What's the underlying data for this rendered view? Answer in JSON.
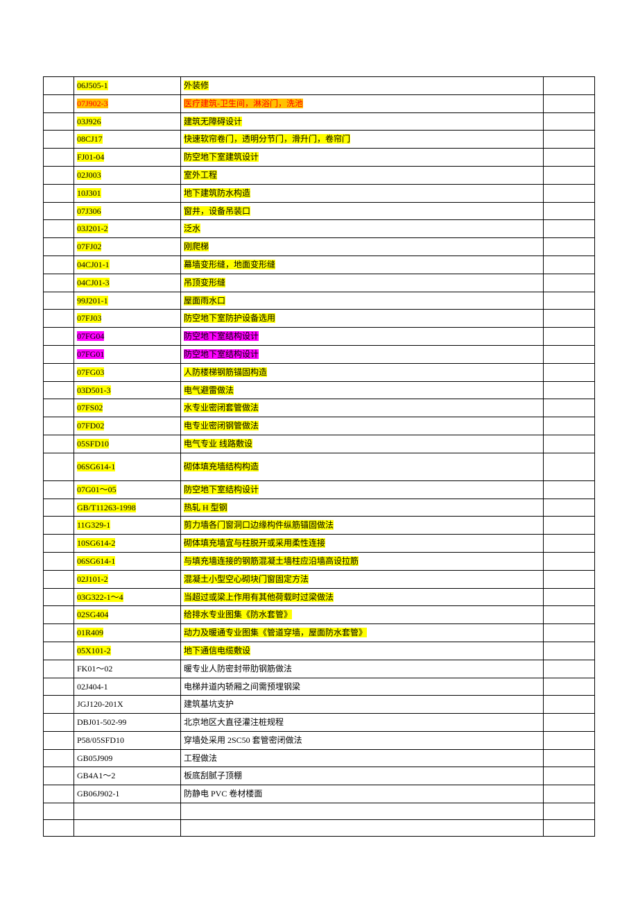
{
  "table": {
    "columns": {
      "col1_width": 44,
      "col2_width": 154,
      "col4_width": 74
    },
    "border_color": "#000000",
    "font_family": "SimSun",
    "font_size": 12,
    "highlight_colors": {
      "yellow": "#ffff00",
      "orange_bg": "#ffc000",
      "orange_text": "#ff0000",
      "magenta": "#ff00ff"
    },
    "rows": [
      {
        "c2": "06J505-1",
        "c3": "外装修",
        "hl": "yellow"
      },
      {
        "c2": "07J902-3",
        "c3": "医疗建筑-卫生间，淋浴门，洗池",
        "hl": "orange"
      },
      {
        "c2": "03J926",
        "c3": "建筑无障碍设计",
        "hl": "yellow"
      },
      {
        "c2": "08CJ17",
        "c3": "快速软帘卷门，透明分节门，滑升门，卷帘门",
        "hl": "yellow"
      },
      {
        "c2": "FJ01-04",
        "c3": "防空地下室建筑设计",
        "hl": "yellow"
      },
      {
        "c2": "02J003",
        "c3": "室外工程",
        "hl": "yellow"
      },
      {
        "c2": "10J301",
        "c3": "地下建筑防水构造",
        "hl": "yellow"
      },
      {
        "c2": "07J306",
        "c3": "窗井，设备吊装口",
        "hl": "yellow"
      },
      {
        "c2": "03J201-2",
        "c3": "泛水",
        "hl": "yellow"
      },
      {
        "c2": "07FJ02",
        "c3": "刚爬梯",
        "hl": "yellow"
      },
      {
        "c2": "04CJ01-1",
        "c3": "幕墙变形缝，地面变形缝",
        "hl": "yellow"
      },
      {
        "c2": "04CJ01-3",
        "c3": "吊顶变形缝",
        "hl": "yellow"
      },
      {
        "c2": "99J201-1",
        "c3": "屋面雨水口",
        "hl": "yellow"
      },
      {
        "c2": "07FJ03",
        "c3": "防空地下室防护设备选用",
        "hl": "yellow"
      },
      {
        "c2": "07FG04",
        "c3": "防空地下室结构设计",
        "hl": "magenta"
      },
      {
        "c2": "07FG01",
        "c3": "防空地下室结构设计",
        "hl": "magenta"
      },
      {
        "c2": "07FG03",
        "c3": "人防楼梯钢筋锚固构造",
        "hl": "yellow"
      },
      {
        "c2": "03D501-3",
        "c3": "电气避雷做法",
        "hl": "yellow"
      },
      {
        "c2": "07FS02",
        "c3": "水专业密闭套管做法",
        "hl": "yellow"
      },
      {
        "c2": "07FD02",
        "c3": "电专业密闭钢管做法",
        "hl": "yellow"
      },
      {
        "c2": "05SFD10",
        "c3": "电气专业  线路敷设",
        "hl": "yellow"
      },
      {
        "c2": "06SG614-1",
        "c3": "砌体填充墙结构构造",
        "hl": "yellow",
        "tall": true
      },
      {
        "c2": "07G01～05",
        "c3": "防空地下室结构设计",
        "hl": "yellow"
      },
      {
        "c2": "GB/T11263-1998",
        "c3": "热轧 H 型钢",
        "hl": "yellow"
      },
      {
        "c2": "11G329-1",
        "c3": "剪力墙各门窗洞口边缘构件纵筋锚固做法",
        "hl": "yellow"
      },
      {
        "c2": "10SG614-2",
        "c3": "砌体填充墙宜与柱脱开或采用柔性连接",
        "hl": "yellow"
      },
      {
        "c2": "06SG614-1",
        "c3": "与填充墙连接的钢筋混凝土墙柱应沿墙高设拉筋",
        "hl": "yellow"
      },
      {
        "c2": "02J101-2",
        "c3": "混凝土小型空心砌块门窗固定方法",
        "hl": "yellow"
      },
      {
        "c2": "03G322-1～4",
        "c3": "当超过或梁上作用有其他荷载时过梁做法",
        "hl": "yellow"
      },
      {
        "c2": "02SG404",
        "c3": "给排水专业图集《防水套管》",
        "hl": "yellow"
      },
      {
        "c2": "01R409",
        "c3": "动力及暖通专业图集《管道穿墙，屋面防水套管》",
        "hl": "yellow"
      },
      {
        "c2": "05X101-2",
        "c3": "地下通信电缆敷设",
        "hl": "yellow"
      },
      {
        "c2": "FK01～02",
        "c3": "暖专业人防密封带肋钢筋做法",
        "hl": "none"
      },
      {
        "c2": "02J404-1",
        "c3": "电梯井道内轿厢之间需预埋钢梁",
        "hl": "none"
      },
      {
        "c2": "JGJ120-201X",
        "c3": "建筑基坑支护",
        "hl": "none"
      },
      {
        "c2": "DBJ01-502-99",
        "c3": "北京地区大直径灌注桩规程",
        "hl": "none"
      },
      {
        "c2": "P58/05SFD10",
        "c3": "穿墙处采用 2SC50 套管密闭做法",
        "hl": "none"
      },
      {
        "c2": "GB05J909",
        "c3": "工程做法",
        "hl": "none"
      },
      {
        "c2": "GB4A1～2",
        "c3": "板底刮腻子顶棚",
        "hl": "none"
      },
      {
        "c2": "GB06J902-1",
        "c3": "防静电 PVC 卷材楼面",
        "hl": "none"
      },
      {
        "c2": "",
        "c3": "",
        "hl": "none"
      },
      {
        "c2": "",
        "c3": "",
        "hl": "none"
      }
    ]
  }
}
